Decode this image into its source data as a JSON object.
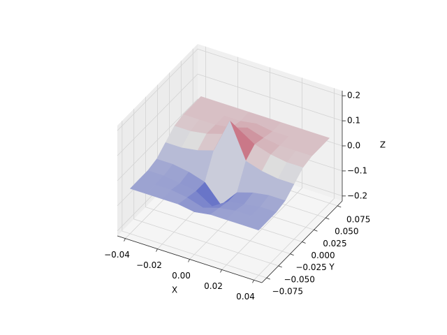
{
  "chart_data": {
    "type": "surface",
    "xlabel": "X",
    "ylabel": "Y",
    "zlabel": "Z",
    "x": [
      -0.04,
      -0.03,
      -0.02,
      -0.01,
      0,
      0.01,
      0.02,
      0.03,
      0.04
    ],
    "y": [
      -0.075,
      -0.05625,
      -0.0375,
      -0.01875,
      0,
      0.01875,
      0.0375,
      0.05625,
      0.075
    ],
    "z": [
      [
        -0.04,
        -0.04,
        -0.04,
        -0.04,
        -0.05,
        -0.04,
        -0.04,
        -0.04,
        -0.04
      ],
      [
        -0.04,
        -0.04,
        -0.04,
        -0.05,
        -0.07,
        -0.05,
        -0.04,
        -0.04,
        -0.04
      ],
      [
        -0.04,
        -0.04,
        -0.05,
        -0.06,
        -0.1,
        -0.06,
        -0.05,
        -0.04,
        -0.04
      ],
      [
        -0.03,
        -0.03,
        -0.04,
        -0.06,
        -0.13,
        -0.06,
        -0.04,
        -0.03,
        -0.03
      ],
      [
        0,
        0,
        0.01,
        0.03,
        0.17,
        0.03,
        0.01,
        0,
        0
      ],
      [
        0.03,
        0.03,
        0.04,
        0.06,
        0.1,
        0.06,
        0.04,
        0.03,
        0.03
      ],
      [
        0.04,
        0.04,
        0.04,
        0.05,
        0.07,
        0.05,
        0.04,
        0.04,
        0.04
      ],
      [
        0.04,
        0.04,
        0.04,
        0.04,
        0.05,
        0.04,
        0.04,
        0.04,
        0.04
      ],
      [
        0.04,
        0.04,
        0.04,
        0.04,
        0.04,
        0.04,
        0.04,
        0.04,
        0.04
      ]
    ],
    "colormap": "coolwarm",
    "xlim": [
      -0.045,
      0.045
    ],
    "ylim": [
      -0.085,
      0.085
    ],
    "zlim": [
      -0.22,
      0.22
    ],
    "xticks": [
      {
        "value": -0.04,
        "label": "−0.04"
      },
      {
        "value": -0.02,
        "label": "−0.02"
      },
      {
        "value": 0,
        "label": "0.00"
      },
      {
        "value": 0.02,
        "label": "0.02"
      },
      {
        "value": 0.04,
        "label": "0.04"
      }
    ],
    "yticks": [
      {
        "value": -0.075,
        "label": "−0.075"
      },
      {
        "value": -0.05,
        "label": "−0.050"
      },
      {
        "value": -0.025,
        "label": "−0.025"
      },
      {
        "value": 0,
        "label": "0.000"
      },
      {
        "value": 0.025,
        "label": "0.025"
      },
      {
        "value": 0.05,
        "label": "0.050"
      },
      {
        "value": 0.075,
        "label": "0.075"
      }
    ],
    "zticks": [
      {
        "value": -0.2,
        "label": "−0.2"
      },
      {
        "value": -0.1,
        "label": "−0.1"
      },
      {
        "value": 0,
        "label": "0.0"
      },
      {
        "value": 0.1,
        "label": "0.1"
      },
      {
        "value": 0.2,
        "label": "0.2"
      }
    ],
    "grid": true
  }
}
